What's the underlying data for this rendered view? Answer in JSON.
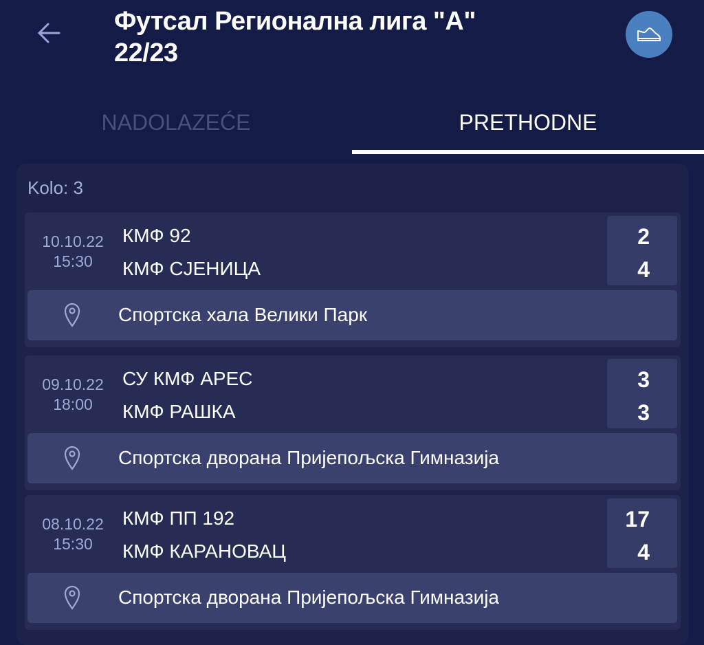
{
  "header": {
    "title_line1": "Футсал Регионална лига \"А\"",
    "title_line2": "22/23",
    "back_icon": "arrow-left-icon",
    "avatar_icon": "shoe-icon"
  },
  "tabs": [
    {
      "label": "NADOLAZEĆE",
      "active": false
    },
    {
      "label": "PRETHODNE",
      "active": true
    }
  ],
  "round_label": "Kolo: 3",
  "matches": [
    {
      "date": "10.10.22",
      "time": "15:30",
      "home": "КМФ 92",
      "away": "КМФ СЈЕНИЦА",
      "home_score": "2",
      "away_score": "4",
      "venue": "Спортска хала Велики Парк"
    },
    {
      "date": "09.10.22",
      "time": "18:00",
      "home": "СУ КМФ АРЕС",
      "away": "КМФ РАШКА",
      "home_score": "3",
      "away_score": "3",
      "venue": "Спортска дворана Пријепољска Гимназија"
    },
    {
      "date": "08.10.22",
      "time": "15:30",
      "home": "КМФ ПП 192",
      "away": "КМФ КАРАНОВАЦ",
      "home_score": "17",
      "away_score": "4",
      "venue": "Спортска дворана Пријепољска Гимназија"
    }
  ],
  "colors": {
    "background": "#141b46",
    "accent": "#4a7fc0",
    "card": "#262c54",
    "score_box": "#353c68",
    "venue_bar": "#3a416e"
  }
}
